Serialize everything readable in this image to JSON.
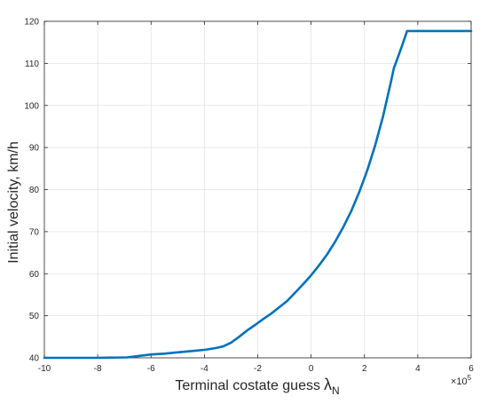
{
  "chart_data": {
    "type": "line",
    "title": "",
    "xlabel": "Terminal costate guess",
    "xlabel_symbol": "λ",
    "xlabel_subscript": "N",
    "ylabel": "Initial velocity, km/h",
    "x_multiplier_label": "×10",
    "x_multiplier_exponent": "5",
    "xlim": [
      -10,
      6
    ],
    "ylim": [
      40,
      120
    ],
    "x_ticks": [
      -10,
      -8,
      -6,
      -4,
      -2,
      0,
      2,
      4,
      6
    ],
    "y_ticks": [
      40,
      50,
      60,
      70,
      80,
      90,
      100,
      110,
      120
    ],
    "grid": true,
    "legend": "none",
    "line_color": "#0072BD",
    "series": [
      {
        "values_x": [
          -10,
          -8,
          -6.9,
          -6.5,
          -6.0,
          -5.5,
          -5.0,
          -4.5,
          -4.0,
          -3.6,
          -3.3,
          -3.0,
          -2.7,
          -2.4,
          -2.1,
          -1.8,
          -1.5,
          -1.2,
          -0.9,
          -0.6,
          -0.3,
          0.0,
          0.3,
          0.6,
          0.9,
          1.2,
          1.5,
          1.8,
          2.1,
          2.4,
          2.7,
          3.0,
          3.1,
          3.2,
          3.4,
          3.6,
          6.0
        ],
        "values_y": [
          40.0,
          40.0,
          40.1,
          40.4,
          40.8,
          41.0,
          41.3,
          41.6,
          41.9,
          42.3,
          42.7,
          43.6,
          45.0,
          46.5,
          47.8,
          49.2,
          50.5,
          52.0,
          53.5,
          55.5,
          57.5,
          59.6,
          62.0,
          64.6,
          67.6,
          71.0,
          74.8,
          79.3,
          84.5,
          90.5,
          97.5,
          105.8,
          108.8,
          110.5,
          114.0,
          117.7,
          117.7
        ]
      }
    ]
  }
}
